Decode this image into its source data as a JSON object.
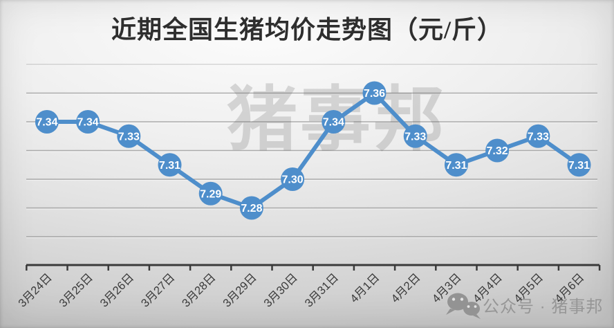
{
  "title": "近期全国生猪均价走势图（元/斤）",
  "watermarks": {
    "center": "猪事邦",
    "bottom_icon": "wechat-icon",
    "bottom": "公众号 · 猪事邦"
  },
  "chart_data": {
    "type": "line",
    "title": "近期全国生猪均价走势图（元/斤）",
    "unit": "元/斤",
    "categories": [
      "3月24日",
      "3月25日",
      "3月26日",
      "3月27日",
      "3月28日",
      "3月29日",
      "3月30日",
      "3月31日",
      "4月1日",
      "4月2日",
      "4月3日",
      "4月4日",
      "4月5日",
      "4月6日"
    ],
    "values": [
      7.34,
      7.34,
      7.33,
      7.31,
      7.29,
      7.28,
      7.3,
      7.34,
      7.36,
      7.33,
      7.31,
      7.32,
      7.33,
      7.31
    ],
    "data_labels": [
      "7.34",
      "7.34",
      "7.33",
      "7.31",
      "7.29",
      "7.28",
      "7.30",
      "7.34",
      "7.36",
      "7.33",
      "7.31",
      "7.32",
      "7.33",
      "7.31"
    ],
    "xlabel": "",
    "ylabel": "",
    "ylim": [
      7.24,
      7.4
    ],
    "gridline_values": [
      7.38,
      7.36,
      7.34,
      7.32,
      7.3,
      7.28,
      7.26
    ],
    "grid": true,
    "legend": "none",
    "colors": {
      "series": "#4E8ECB",
      "data_label": "#FFFFFF",
      "gridline": "#A0A0A0",
      "axis": "#3A3A3A",
      "tick_label": "#3A3A3A"
    }
  }
}
